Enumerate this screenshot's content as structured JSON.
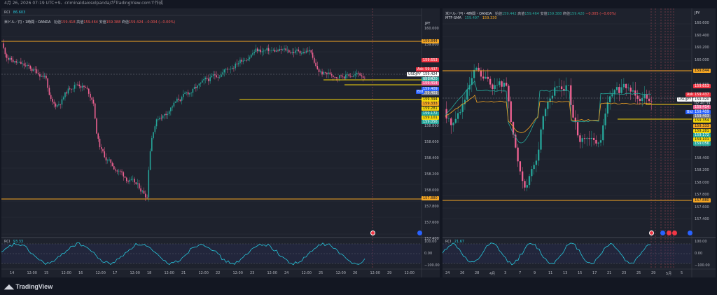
{
  "header": {
    "caption": "4月 26, 2026 07:19 UTC+9、criminaldaiosolpanda/がTradingView.comで作成"
  },
  "footer": {
    "brand": "TradingView"
  },
  "left": {
    "rci_top_label": "RCI",
    "rci_top_value": "86.603",
    "symbol_line": "米ドル／円・1時間・OANDA",
    "ohlc": {
      "o_label": "始値",
      "o": "159.418",
      "h_label": "高値",
      "h": "159.464",
      "l_label": "安値",
      "l": "159.388",
      "c_label": "終値",
      "c": "159.424",
      "chg": "−0.004 (−0.00%)"
    },
    "currency": "JPY",
    "y_ticks": [
      "160.000",
      "159.800",
      "159.600",
      "159.400",
      "159.200",
      "159.000",
      "158.800",
      "158.600",
      "158.400",
      "158.200",
      "158.000",
      "157.800",
      "157.600",
      "157.400"
    ],
    "price_tags": [
      {
        "text": "159.844",
        "color": "#f5a623",
        "fg": "#131722"
      },
      {
        "text": "159.653",
        "color": "#f23645",
        "fg": "#ffffff"
      },
      {
        "text": "159.437",
        "color": "#f23645",
        "fg": "#ffffff"
      },
      {
        "text": "159.424",
        "color": "#ffffff",
        "fg": "#131722"
      },
      {
        "text": "159.420",
        "color": "#26a69a",
        "fg": "#ffffff"
      },
      {
        "text": "159.414",
        "color": "#f06292",
        "fg": "#ffffff"
      },
      {
        "text": "159.409",
        "color": "#2962ff",
        "fg": "#ffffff"
      },
      {
        "text": "159.403",
        "color": "#787b86",
        "fg": "#ffffff"
      },
      {
        "text": "159.394",
        "color": "#f5d70a",
        "fg": "#131722"
      },
      {
        "text": "159.333",
        "color": "#f5a623",
        "fg": "#131722"
      },
      {
        "text": "159.281",
        "color": "#f5d70a",
        "fg": "#131722"
      },
      {
        "text": "159.172",
        "color": "#26a69a",
        "fg": "#ffffff"
      },
      {
        "text": "159.101",
        "color": "#f5d70a",
        "fg": "#131722"
      },
      {
        "text": "159.056",
        "color": "#26a69a",
        "fg": "#ffffff"
      },
      {
        "text": "157.880",
        "color": "#f5a623",
        "fg": "#131722"
      }
    ],
    "side_labels": {
      "ask": "Ask",
      "symbol": "USDJPY",
      "countdown": "40:39",
      "bid": "Bid"
    },
    "rci_bottom_label": "RCI",
    "rci_bottom_value": "93.33",
    "rci_ticks": [
      "100.00",
      "0.00",
      "−100.00"
    ],
    "x_ticks": [
      "14",
      "12:00",
      "15",
      "12:00",
      "16",
      "12:00",
      "17",
      "12:00",
      "18",
      "12:00",
      "21",
      "12:00",
      "22",
      "12:00",
      "23",
      "12:00",
      "24",
      "12:00",
      "25",
      "12:00",
      "26",
      "12:00",
      "29",
      "12:00"
    ]
  },
  "right": {
    "symbol_line": "米ドル／円・4時間・OANDA",
    "ohlc": {
      "o_label": "始値",
      "o": "159.442",
      "h_label": "高値",
      "h": "159.464",
      "l_label": "安値",
      "l": "159.388",
      "c_label": "終値",
      "c": "159.420",
      "chg": "−0.005 (−0.00%)"
    },
    "mtf_label": "MTF-SMA",
    "mtf_v1": "159.497",
    "mtf_v2": "159.330",
    "currency": "JPY",
    "y_ticks": [
      "160.600",
      "160.400",
      "160.200",
      "160.000",
      "159.800",
      "159.600",
      "159.400",
      "159.200",
      "159.000",
      "158.800",
      "158.600",
      "158.400",
      "158.200",
      "158.000",
      "157.800",
      "157.600",
      "157.400"
    ],
    "price_tags": [
      {
        "text": "159.844",
        "color": "#f5a623",
        "fg": "#131722"
      },
      {
        "text": "159.653",
        "color": "#f23645",
        "fg": "#ffffff"
      },
      {
        "text": "159.437",
        "color": "#f23645",
        "fg": "#ffffff"
      },
      {
        "text": "159.420",
        "color": "#ffffff",
        "fg": "#131722"
      },
      {
        "text": "159.414",
        "color": "#f06292",
        "fg": "#ffffff"
      },
      {
        "text": "159.409",
        "color": "#2962ff",
        "fg": "#ffffff"
      },
      {
        "text": "159.403",
        "color": "#787b86",
        "fg": "#ffffff"
      },
      {
        "text": "159.354",
        "color": "#f5d70a",
        "fg": "#131722"
      },
      {
        "text": "159.333",
        "color": "#f5a623",
        "fg": "#131722"
      },
      {
        "text": "159.281",
        "color": "#f5d70a",
        "fg": "#131722"
      },
      {
        "text": "159.172",
        "color": "#26a69a",
        "fg": "#ffffff"
      },
      {
        "text": "159.101",
        "color": "#f5d70a",
        "fg": "#131722"
      },
      {
        "text": "159.056",
        "color": "#26a69a",
        "fg": "#ffffff"
      },
      {
        "text": "157.880",
        "color": "#f5a623",
        "fg": "#131722"
      }
    ],
    "side_labels": {
      "ask": "Ask",
      "symbol": "USDJPY",
      "countdown": "02:40:39",
      "bid": "Bid"
    },
    "rci_bottom_label": "RCI",
    "rci_bottom_value": "21.67",
    "rci_ticks": [
      "100.00",
      "0.00",
      "−100.00"
    ],
    "x_ticks": [
      "24",
      "26",
      "28",
      "4月",
      "3",
      "7",
      "9",
      "11",
      "13",
      "15",
      "17",
      "21",
      "23",
      "25",
      "29",
      "5月",
      "5"
    ]
  }
}
